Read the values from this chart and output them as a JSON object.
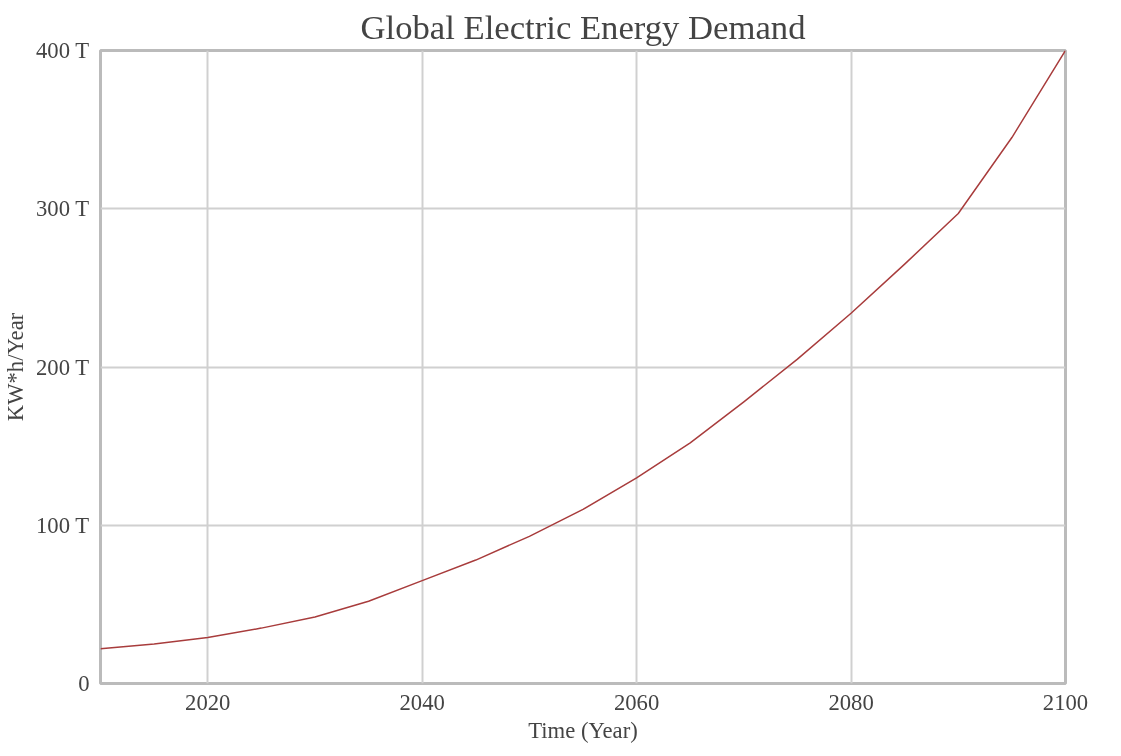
{
  "chart_data": {
    "type": "line",
    "title": "Global Electric Energy Demand",
    "xlabel": "Time (Year)",
    "ylabel": "KW*h/Year",
    "series": [
      {
        "color": "#a83c3c",
        "x": [
          2010,
          2015,
          2020,
          2025,
          2030,
          2035,
          2040,
          2045,
          2050,
          2055,
          2060,
          2065,
          2070,
          2075,
          2080,
          2085,
          2090,
          2095,
          2100
        ],
        "values": [
          22,
          25,
          29,
          35,
          42,
          52,
          65,
          78,
          93,
          110,
          130,
          152,
          178,
          205,
          234,
          265,
          297,
          345,
          400
        ]
      }
    ],
    "xlim": [
      2010,
      2100
    ],
    "xticks": [
      2020,
      2040,
      2060,
      2080,
      2100
    ],
    "ylim": [
      0,
      400
    ],
    "yticks": [
      0,
      {
        "value": 100,
        "label": "100 T"
      },
      {
        "value": 200,
        "label": "200 T"
      },
      {
        "value": 300,
        "label": "300 T"
      },
      {
        "value": 400,
        "label": "400 T"
      }
    ],
    "grid": true,
    "marker": "none",
    "line_style": "solid"
  }
}
